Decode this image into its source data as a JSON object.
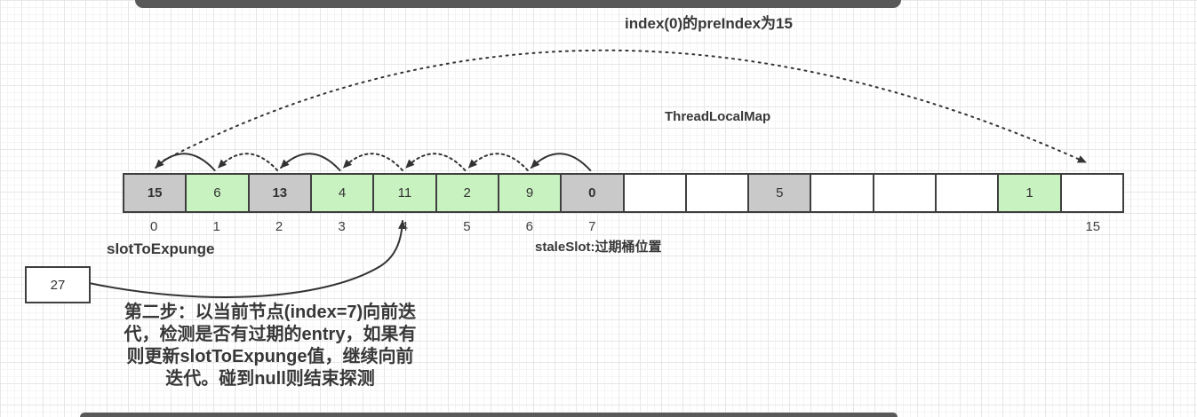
{
  "title": "index(0)的preIndex为15",
  "map_label": "ThreadLocalMap",
  "labels": {
    "slot_to_expunge": "slotToExpunge",
    "stale_slot": "staleSlot:过期桶位置"
  },
  "pointer_box": {
    "value": "27"
  },
  "annotation": {
    "lines": [
      "第二步：以当前节点(index=7)向前迭",
      "代，检测是否有过期的entry，如果有",
      "则更新slotToExpunge值，继续向前",
      "迭代。碰到null则结束探测"
    ]
  },
  "colors": {
    "stale_cell": "#c9c9c9",
    "valid_cell": "#c9f2c1",
    "empty_cell": "#ffffff",
    "border": "#3f3f3f",
    "bar": "#595959",
    "arrow": "#333333"
  },
  "array": {
    "cells": [
      {
        "index": "0",
        "value": "15",
        "type": "stale",
        "bold": true
      },
      {
        "index": "1",
        "value": "6",
        "type": "valid",
        "bold": false
      },
      {
        "index": "2",
        "value": "13",
        "type": "stale",
        "bold": true
      },
      {
        "index": "3",
        "value": "4",
        "type": "valid",
        "bold": false
      },
      {
        "index": "4",
        "value": "11",
        "type": "valid",
        "bold": false
      },
      {
        "index": "5",
        "value": "2",
        "type": "valid",
        "bold": false
      },
      {
        "index": "6",
        "value": "9",
        "type": "valid",
        "bold": false
      },
      {
        "index": "7",
        "value": "0",
        "type": "stale",
        "bold": true
      },
      {
        "index": "",
        "value": "",
        "type": "empty",
        "bold": false
      },
      {
        "index": "",
        "value": "",
        "type": "empty",
        "bold": false
      },
      {
        "index": "",
        "value": "5",
        "type": "stale",
        "bold": false
      },
      {
        "index": "",
        "value": "",
        "type": "empty",
        "bold": false
      },
      {
        "index": "",
        "value": "",
        "type": "empty",
        "bold": false
      },
      {
        "index": "",
        "value": "",
        "type": "empty",
        "bold": false
      },
      {
        "index": "",
        "value": "1",
        "type": "valid",
        "bold": false
      },
      {
        "index": "15",
        "value": "",
        "type": "empty",
        "bold": false
      }
    ]
  },
  "arrows": {
    "back_arcs": [
      {
        "from": 1,
        "to": 0,
        "style": "solid"
      },
      {
        "from": 2,
        "to": 1,
        "style": "dotted"
      },
      {
        "from": 3,
        "to": 2,
        "style": "solid"
      },
      {
        "from": 4,
        "to": 3,
        "style": "dotted"
      },
      {
        "from": 5,
        "to": 4,
        "style": "dotted"
      },
      {
        "from": 6,
        "to": 5,
        "style": "dotted"
      },
      {
        "from": 7,
        "to": 6,
        "style": "solid"
      }
    ],
    "pre_index_arc": {
      "from": 0,
      "to": 15,
      "style": "dotted"
    },
    "pointer_arrow": {
      "from": "pointer_box",
      "to": 4,
      "style": "solid"
    }
  }
}
